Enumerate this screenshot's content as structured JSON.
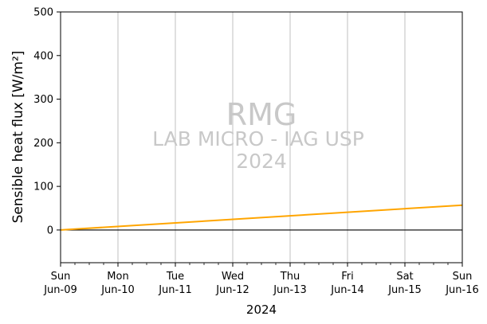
{
  "chart_data": {
    "type": "line",
    "title": "",
    "ylabel": "Sensible heat flux [W/m²]",
    "xlabel": "2024",
    "ylim": [
      -75,
      500
    ],
    "yticks": [
      0,
      100,
      200,
      300,
      400,
      500
    ],
    "xlim": [
      "2024-06-09",
      "2024-06-16"
    ],
    "xticks": [
      {
        "date": "2024-06-09",
        "day": "Sun",
        "label": "Jun-09"
      },
      {
        "date": "2024-06-10",
        "day": "Mon",
        "label": "Jun-10"
      },
      {
        "date": "2024-06-11",
        "day": "Tue",
        "label": "Jun-11"
      },
      {
        "date": "2024-06-12",
        "day": "Wed",
        "label": "Jun-12"
      },
      {
        "date": "2024-06-13",
        "day": "Thu",
        "label": "Jun-13"
      },
      {
        "date": "2024-06-14",
        "day": "Fri",
        "label": "Jun-14"
      },
      {
        "date": "2024-06-15",
        "day": "Sat",
        "label": "Jun-15"
      },
      {
        "date": "2024-06-16",
        "day": "Sun",
        "label": "Jun-16"
      }
    ],
    "grid": "vertical",
    "zero_line": true,
    "series": [
      {
        "color": "#ffa500",
        "x": [
          "2024-06-09",
          "2024-06-16"
        ],
        "y": [
          0,
          57
        ]
      }
    ],
    "watermark": {
      "line1": "RMG",
      "line2": "LAB MICRO - IAG USP",
      "line3": "2024"
    }
  }
}
